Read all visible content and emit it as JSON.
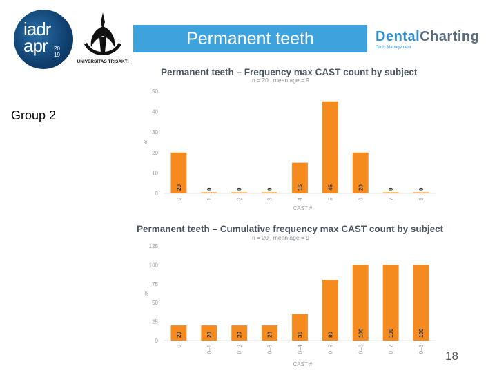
{
  "header": {
    "title": "Permanent teeth",
    "group_label": "Group 2",
    "page_number": "18"
  },
  "logos": {
    "iadr_line1": "iadr",
    "iadr_line2": "apr",
    "iadr_year": "20 19",
    "university": "UNIVERSITAS TRISAKTI",
    "brand_part1": "Dental",
    "brand_part2": "Charting",
    "brand_sub": "Clinic Management"
  },
  "colors": {
    "accent": "#3ea2dc",
    "bar": "#f58a1f",
    "axis_text": "#9aa0a6"
  },
  "chart_data": [
    {
      "type": "bar",
      "title": "Permanent teeth – Frequency max CAST count by subject",
      "subtitle": "n = 20 | mean age = 9",
      "xlabel": "CAST #",
      "ylabel": "%",
      "categories": [
        "0",
        "1",
        "2",
        "3",
        "4",
        "5",
        "6",
        "7",
        "8"
      ],
      "values": [
        20,
        0,
        0,
        0,
        15,
        45,
        20,
        0,
        0
      ],
      "value_labels": [
        "20",
        "0",
        "0",
        "0",
        "15",
        "45",
        "20",
        "0",
        "0"
      ],
      "yticks": [
        "0",
        "10",
        "20",
        "30",
        "40",
        "50"
      ],
      "ylim": [
        0,
        50
      ]
    },
    {
      "type": "bar",
      "title": "Permanent teeth – Cumulative frequency max CAST count by subject",
      "subtitle": "n = 20 | mean age = 9",
      "xlabel": "CAST #",
      "ylabel": "%",
      "categories": [
        "0",
        "0–1",
        "0–2",
        "0–3",
        "0–4",
        "0–5",
        "0–6",
        "0–7",
        "0–8"
      ],
      "values": [
        20,
        20,
        20,
        20,
        35,
        80,
        100,
        100,
        100
      ],
      "value_labels": [
        "20",
        "20",
        "20",
        "20",
        "35",
        "80",
        "100",
        "100",
        "100"
      ],
      "yticks": [
        "0",
        "25",
        "50",
        "75",
        "100",
        "125"
      ],
      "ylim": [
        0,
        125
      ]
    }
  ]
}
